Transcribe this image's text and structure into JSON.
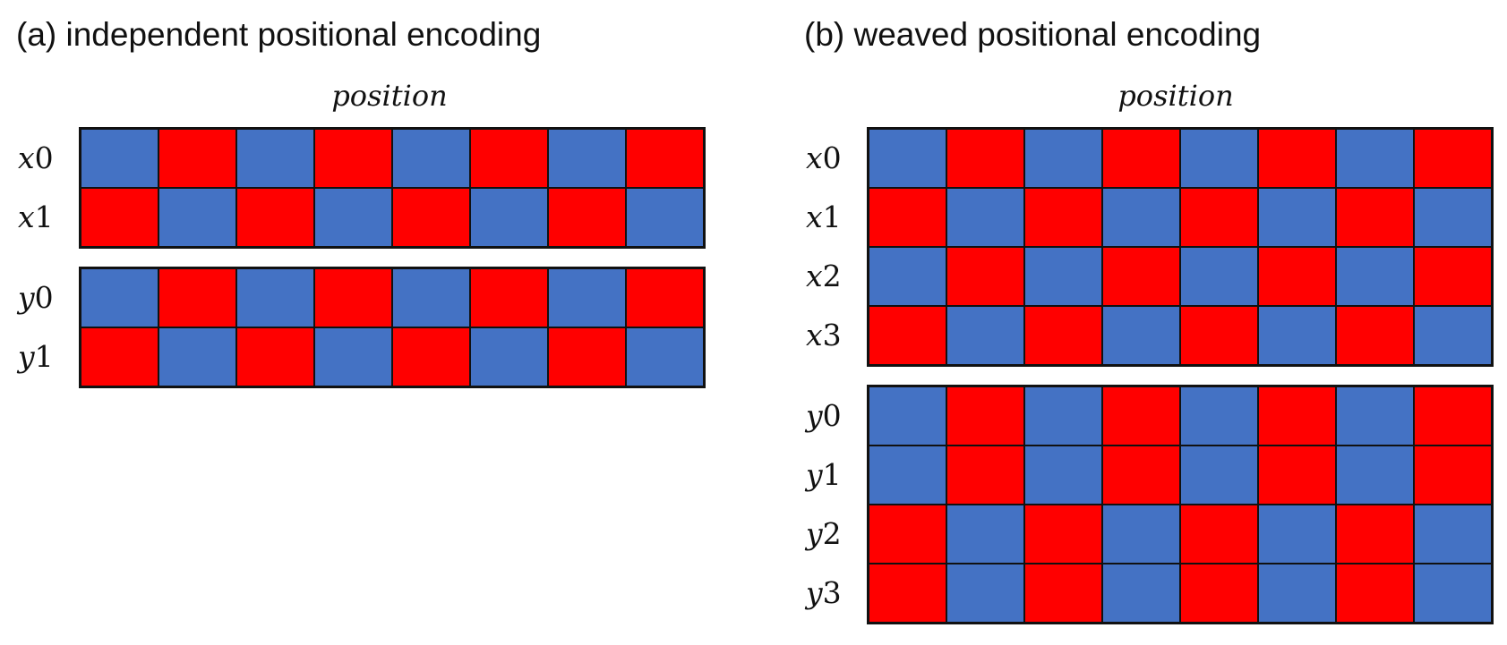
{
  "panel_a": {
    "title": "(a) independent positional encoding",
    "axis_label": "position",
    "blocks": [
      {
        "rows": [
          {
            "var": "x",
            "idx": "0",
            "pattern": [
              "blue",
              "red",
              "blue",
              "red",
              "blue",
              "red",
              "blue",
              "red"
            ]
          },
          {
            "var": "x",
            "idx": "1",
            "pattern": [
              "red",
              "blue",
              "red",
              "blue",
              "red",
              "blue",
              "red",
              "blue"
            ]
          }
        ]
      },
      {
        "rows": [
          {
            "var": "y",
            "idx": "0",
            "pattern": [
              "blue",
              "red",
              "blue",
              "red",
              "blue",
              "red",
              "blue",
              "red"
            ]
          },
          {
            "var": "y",
            "idx": "1",
            "pattern": [
              "red",
              "blue",
              "red",
              "blue",
              "red",
              "blue",
              "red",
              "blue"
            ]
          }
        ]
      }
    ]
  },
  "panel_b": {
    "title": "(b) weaved positional encoding",
    "axis_label": "position",
    "blocks": [
      {
        "rows": [
          {
            "var": "x",
            "idx": "0",
            "pattern": [
              "blue",
              "red",
              "blue",
              "red",
              "blue",
              "red",
              "blue",
              "red"
            ]
          },
          {
            "var": "x",
            "idx": "1",
            "pattern": [
              "red",
              "blue",
              "red",
              "blue",
              "red",
              "blue",
              "red",
              "blue"
            ]
          },
          {
            "var": "x",
            "idx": "2",
            "pattern": [
              "blue",
              "red",
              "blue",
              "red",
              "blue",
              "red",
              "blue",
              "red"
            ]
          },
          {
            "var": "x",
            "idx": "3",
            "pattern": [
              "red",
              "blue",
              "red",
              "blue",
              "red",
              "blue",
              "red",
              "blue"
            ]
          }
        ]
      },
      {
        "rows": [
          {
            "var": "y",
            "idx": "0",
            "pattern": [
              "blue",
              "red",
              "blue",
              "red",
              "blue",
              "red",
              "blue",
              "red"
            ]
          },
          {
            "var": "y",
            "idx": "1",
            "pattern": [
              "blue",
              "red",
              "blue",
              "red",
              "blue",
              "red",
              "blue",
              "red"
            ]
          },
          {
            "var": "y",
            "idx": "2",
            "pattern": [
              "red",
              "blue",
              "red",
              "blue",
              "red",
              "blue",
              "red",
              "blue"
            ]
          },
          {
            "var": "y",
            "idx": "3",
            "pattern": [
              "red",
              "blue",
              "red",
              "blue",
              "red",
              "blue",
              "red",
              "blue"
            ]
          }
        ]
      }
    ]
  },
  "colors": {
    "blue": "#4472C4",
    "red": "#FF0000",
    "border": "#111111"
  }
}
